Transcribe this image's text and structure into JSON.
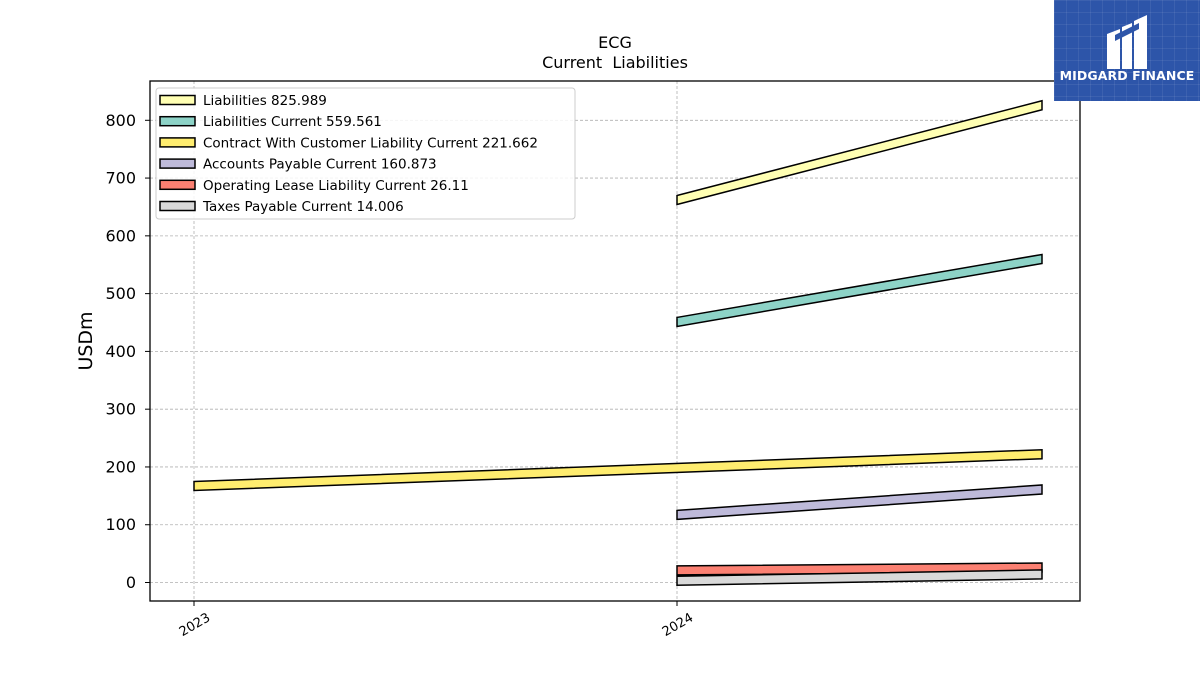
{
  "chart_data": {
    "type": "line",
    "title": "ECG",
    "subtitle": "Current  Liabilities",
    "ylabel": "USDm",
    "xlabel": "",
    "x_tick_labels": [
      "2023",
      "2024"
    ],
    "ylim": [
      -32,
      868
    ],
    "y_ticks": [
      0,
      100,
      200,
      300,
      400,
      500,
      600,
      700,
      800
    ],
    "grid": true,
    "legend_position": "top-left",
    "series": [
      {
        "name": "Liabilities",
        "legend_value": "825.989",
        "color": "#ffffb3",
        "points": [
          {
            "x": "2024",
            "y": 662
          },
          {
            "x": "2024-end",
            "y": 826
          }
        ]
      },
      {
        "name": "Liabilities Current",
        "legend_value": "559.561",
        "color": "#8dd3c7",
        "points": [
          {
            "x": "2024",
            "y": 451
          },
          {
            "x": "2024-end",
            "y": 560
          }
        ]
      },
      {
        "name": "Contract With Customer Liability Current",
        "legend_value": "221.662",
        "color": "#ffed6f",
        "points": [
          {
            "x": "2023",
            "y": 167
          },
          {
            "x": "2024-end",
            "y": 222
          }
        ]
      },
      {
        "name": "Accounts Payable Current",
        "legend_value": "160.873",
        "color": "#bebada",
        "points": [
          {
            "x": "2024",
            "y": 117
          },
          {
            "x": "2024-end",
            "y": 161
          }
        ]
      },
      {
        "name": "Operating Lease Liability Current",
        "legend_value": "26.11",
        "color": "#fb8072",
        "points": [
          {
            "x": "2024",
            "y": 21
          },
          {
            "x": "2024-end",
            "y": 26
          }
        ]
      },
      {
        "name": "Taxes Payable Current",
        "legend_value": "14.006",
        "color": "#d9d9d9",
        "points": [
          {
            "x": "2024",
            "y": 3
          },
          {
            "x": "2024-end",
            "y": 14
          }
        ]
      }
    ]
  },
  "logo": {
    "text": "MIDGARD FINANCE",
    "color": "#2d55a9"
  }
}
